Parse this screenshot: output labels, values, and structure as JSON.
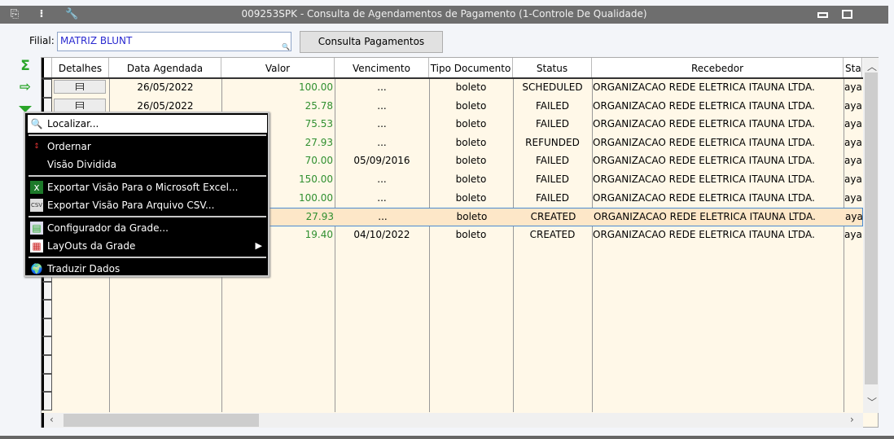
{
  "window": {
    "title": "009253SPK - Consulta de Agendamentos de Pagamento (1-Controle De Qualidade)",
    "icons": [
      "export-icon",
      "traffic-light-icon",
      "wrench-icon"
    ]
  },
  "filter": {
    "label": "Filial:",
    "value": "MATRIZ BLUNT",
    "button": "Consulta Pagamentos"
  },
  "sidebar_icons": [
    "sigma-icon",
    "export-icon",
    "filter-icon"
  ],
  "grid": {
    "columns": [
      "Detalhes",
      "Data Agendada",
      "Valor",
      "Vencimento",
      "Tipo Documento",
      "Status",
      "Recebedor",
      "Sta"
    ],
    "rows": [
      {
        "data": "26/05/2022",
        "valor": "100.00",
        "venc": "...",
        "tipo": "boleto",
        "status": "SCHEDULED",
        "receb": "ORGANIZACAO REDE ELETRICA ITAUNA LTDA.",
        "sta": "aya"
      },
      {
        "data": "26/05/2022",
        "valor": "25.78",
        "venc": "...",
        "tipo": "boleto",
        "status": "FAILED",
        "receb": "ORGANIZACAO REDE ELETRICA ITAUNA LTDA.",
        "sta": "aya"
      },
      {
        "data": "",
        "valor": "75.53",
        "venc": "...",
        "tipo": "boleto",
        "status": "FAILED",
        "receb": "ORGANIZACAO REDE ELETRICA ITAUNA LTDA.",
        "sta": "aya"
      },
      {
        "data": "",
        "valor": "27.93",
        "venc": "...",
        "tipo": "boleto",
        "status": "REFUNDED",
        "receb": "ORGANIZACAO REDE ELETRICA ITAUNA LTDA.",
        "sta": "aya"
      },
      {
        "data": "",
        "valor": "70.00",
        "venc": "05/09/2016",
        "tipo": "boleto",
        "status": "FAILED",
        "receb": "ORGANIZACAO REDE ELETRICA ITAUNA LTDA.",
        "sta": "aya"
      },
      {
        "data": "",
        "valor": "150.00",
        "venc": "...",
        "tipo": "boleto",
        "status": "FAILED",
        "receb": "ORGANIZACAO REDE ELETRICA ITAUNA LTDA.",
        "sta": "aya"
      },
      {
        "data": "",
        "valor": "100.00",
        "venc": "...",
        "tipo": "boleto",
        "status": "FAILED",
        "receb": "ORGANIZACAO REDE ELETRICA ITAUNA LTDA.",
        "sta": "aya"
      },
      {
        "data": "",
        "valor": "27.93",
        "venc": "...",
        "tipo": "boleto",
        "status": "CREATED",
        "receb": "ORGANIZACAO REDE ELETRICA ITAUNA LTDA.",
        "sta": "aya",
        "selected": true
      },
      {
        "data": "",
        "valor": "19.40",
        "venc": "04/10/2022",
        "tipo": "boleto",
        "status": "CREATED",
        "receb": "ORGANIZACAO REDE ELETRICA ITAUNA LTDA.",
        "sta": "aya"
      }
    ]
  },
  "context_menu": {
    "items": [
      {
        "label": "Localizar...",
        "icon": "magnifier-icon"
      },
      {
        "label": "Ordernar",
        "icon": "sort-az-icon"
      },
      {
        "label": "Visão Dividida",
        "icon": ""
      },
      {
        "label": "Exportar Visão Para o Microsoft Excel...",
        "icon": "excel-icon"
      },
      {
        "label": "Exportar Visão Para Arquivo CSV...",
        "icon": "csv-icon"
      },
      {
        "label": "Configurador da Grade...",
        "icon": "grid-config-icon"
      },
      {
        "label": "LayOuts da Grade",
        "icon": "layout-icon",
        "submenu": true
      },
      {
        "label": "Traduzir Dados",
        "icon": "globe-icon"
      }
    ]
  },
  "colors": {
    "titlebar": "#6e6e6e",
    "grid_bg": "#fff8e8",
    "value_green": "#2f8f2f",
    "filial_text": "#2a2ad0",
    "selected_row": "#fde7c8"
  }
}
